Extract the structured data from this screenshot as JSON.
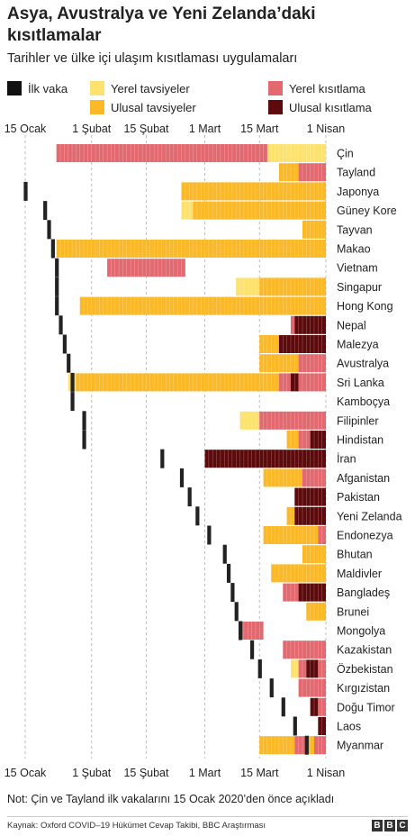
{
  "title": "Asya, Avustralya ve Yeni Zelanda’daki kısıtlamalar",
  "subtitle": "Tarihler ve ülke içi ulaşım kısıtlaması uygulamaları",
  "legend": [
    {
      "label": "İlk vaka",
      "color": "#111111"
    },
    {
      "label": "Yerel tavsiyeler",
      "color": "#fde270"
    },
    {
      "label": "Yerel kısıtlama",
      "color": "#e1696f"
    },
    {
      "label": "Ulusal tavsiyeler",
      "color": "#fbb827"
    },
    {
      "label": "Ulusal kısıtlama",
      "color": "#5c0a0b"
    }
  ],
  "note": "Not: Çin ve Tayland ilk vakalarını 15 Ocak 2020’den önce açıkladı",
  "source": "Kaynak: Oxford COVID–19 Hükümet Cevap Takibi, BBC Araştırması",
  "logo": [
    "B",
    "B",
    "C"
  ],
  "chart_data": {
    "type": "timeline",
    "x_axis": {
      "start": "2020-01-15",
      "end": "2020-04-01",
      "ticks": [
        {
          "date": "2020-01-15",
          "label": "15 Ocak"
        },
        {
          "date": "2020-02-01",
          "label": "1 Şubat"
        },
        {
          "date": "2020-02-15",
          "label": "15 Şubat"
        },
        {
          "date": "2020-03-01",
          "label": "1 Mart"
        },
        {
          "date": "2020-03-15",
          "label": "15 Mart"
        },
        {
          "date": "2020-04-01",
          "label": "1 Nisan"
        }
      ],
      "position": "top and bottom",
      "grid": "dashed vertical"
    },
    "categories": {
      "yerel_tavsiye": {
        "label": "Yerel tavsiyeler",
        "color": "#fde270"
      },
      "ulusal_tavsiye": {
        "label": "Ulusal tavsiyeler",
        "color": "#fbb827"
      },
      "yerel_kisitlama": {
        "label": "Yerel kısıtlama",
        "color": "#e1696f"
      },
      "ulusal_kisitlama": {
        "label": "Ulusal kısıtlama",
        "color": "#5c0a0b"
      }
    },
    "countries": [
      {
        "name": "Çin",
        "first_case": null,
        "segments": [
          [
            "2020-01-23",
            "2020-03-17",
            "yerel_kisitlama"
          ],
          [
            "2020-03-17",
            "2020-04-01",
            "yerel_tavsiye"
          ]
        ]
      },
      {
        "name": "Tayland",
        "first_case": null,
        "segments": [
          [
            "2020-03-20",
            "2020-03-25",
            "ulusal_tavsiye"
          ],
          [
            "2020-03-25",
            "2020-04-01",
            "yerel_kisitlama"
          ]
        ]
      },
      {
        "name": "Japonya",
        "first_case": "2020-01-15",
        "segments": [
          [
            "2020-02-24",
            "2020-04-01",
            "ulusal_tavsiye"
          ]
        ]
      },
      {
        "name": "Güney Kore",
        "first_case": "2020-01-20",
        "segments": [
          [
            "2020-02-24",
            "2020-02-27",
            "yerel_tavsiye"
          ],
          [
            "2020-02-27",
            "2020-04-01",
            "ulusal_tavsiye"
          ]
        ]
      },
      {
        "name": "Tayvan",
        "first_case": "2020-01-21",
        "segments": [
          [
            "2020-03-26",
            "2020-04-01",
            "ulusal_tavsiye"
          ]
        ]
      },
      {
        "name": "Makao",
        "first_case": "2020-01-22",
        "segments": [
          [
            "2020-01-23",
            "2020-04-01",
            "ulusal_tavsiye"
          ]
        ]
      },
      {
        "name": "Vietnam",
        "first_case": "2020-01-23",
        "segments": [
          [
            "2020-02-05",
            "2020-02-25",
            "yerel_kisitlama"
          ]
        ]
      },
      {
        "name": "Singapur",
        "first_case": "2020-01-23",
        "segments": [
          [
            "2020-03-09",
            "2020-03-15",
            "yerel_tavsiye"
          ],
          [
            "2020-03-15",
            "2020-04-01",
            "ulusal_tavsiye"
          ]
        ]
      },
      {
        "name": "Hong Kong",
        "first_case": "2020-01-23",
        "segments": [
          [
            "2020-01-29",
            "2020-04-01",
            "ulusal_tavsiye"
          ]
        ]
      },
      {
        "name": "Nepal",
        "first_case": "2020-01-24",
        "segments": [
          [
            "2020-03-23",
            "2020-03-24",
            "yerel_kisitlama"
          ],
          [
            "2020-03-24",
            "2020-04-01",
            "ulusal_kisitlama"
          ]
        ]
      },
      {
        "name": "Malezya",
        "first_case": "2020-01-25",
        "segments": [
          [
            "2020-03-15",
            "2020-03-20",
            "ulusal_tavsiye"
          ],
          [
            "2020-03-20",
            "2020-04-01",
            "ulusal_kisitlama"
          ]
        ]
      },
      {
        "name": "Avustralya",
        "first_case": "2020-01-26",
        "segments": [
          [
            "2020-03-15",
            "2020-03-25",
            "ulusal_tavsiye"
          ],
          [
            "2020-03-25",
            "2020-04-01",
            "yerel_kisitlama"
          ]
        ]
      },
      {
        "name": "Sri Lanka",
        "first_case": "2020-01-27",
        "segments": [
          [
            "2020-01-26",
            "2020-01-28",
            "yerel_tavsiye"
          ],
          [
            "2020-01-28",
            "2020-03-20",
            "ulusal_tavsiye"
          ],
          [
            "2020-03-20",
            "2020-03-23",
            "yerel_kisitlama"
          ],
          [
            "2020-03-23",
            "2020-03-25",
            "ulusal_kisitlama"
          ],
          [
            "2020-03-25",
            "2020-04-01",
            "yerel_kisitlama"
          ]
        ]
      },
      {
        "name": "Kamboçya",
        "first_case": "2020-01-27",
        "segments": []
      },
      {
        "name": "Filipinler",
        "first_case": "2020-01-30",
        "segments": [
          [
            "2020-03-10",
            "2020-03-15",
            "yerel_tavsiye"
          ],
          [
            "2020-03-15",
            "2020-04-01",
            "yerel_kisitlama"
          ]
        ]
      },
      {
        "name": "Hindistan",
        "first_case": "2020-01-30",
        "segments": [
          [
            "2020-03-22",
            "2020-03-25",
            "ulusal_tavsiye"
          ],
          [
            "2020-03-25",
            "2020-03-28",
            "yerel_kisitlama"
          ],
          [
            "2020-03-28",
            "2020-04-01",
            "ulusal_kisitlama"
          ]
        ]
      },
      {
        "name": "İran",
        "first_case": "2020-02-19",
        "segments": [
          [
            "2020-03-01",
            "2020-04-01",
            "ulusal_kisitlama"
          ]
        ]
      },
      {
        "name": "Afganistan",
        "first_case": "2020-02-24",
        "segments": [
          [
            "2020-03-16",
            "2020-03-26",
            "ulusal_tavsiye"
          ],
          [
            "2020-03-26",
            "2020-04-01",
            "yerel_kisitlama"
          ]
        ]
      },
      {
        "name": "Pakistan",
        "first_case": "2020-02-26",
        "segments": [
          [
            "2020-03-24",
            "2020-04-01",
            "ulusal_kisitlama"
          ]
        ]
      },
      {
        "name": "Yeni Zelanda",
        "first_case": "2020-02-28",
        "segments": [
          [
            "2020-03-22",
            "2020-03-24",
            "ulusal_tavsiye"
          ],
          [
            "2020-03-24",
            "2020-04-01",
            "ulusal_kisitlama"
          ]
        ]
      },
      {
        "name": "Endonezya",
        "first_case": "2020-03-02",
        "segments": [
          [
            "2020-03-16",
            "2020-03-30",
            "ulusal_tavsiye"
          ],
          [
            "2020-03-30",
            "2020-04-01",
            "yerel_kisitlama"
          ]
        ]
      },
      {
        "name": "Bhutan",
        "first_case": "2020-03-06",
        "segments": [
          [
            "2020-03-26",
            "2020-04-01",
            "ulusal_tavsiye"
          ]
        ]
      },
      {
        "name": "Maldivler",
        "first_case": "2020-03-07",
        "segments": [
          [
            "2020-03-18",
            "2020-04-01",
            "ulusal_tavsiye"
          ]
        ]
      },
      {
        "name": "Bangladeş",
        "first_case": "2020-03-08",
        "segments": [
          [
            "2020-03-21",
            "2020-03-25",
            "yerel_kisitlama"
          ],
          [
            "2020-03-25",
            "2020-04-01",
            "ulusal_kisitlama"
          ]
        ]
      },
      {
        "name": "Brunei",
        "first_case": "2020-03-09",
        "segments": [
          [
            "2020-03-27",
            "2020-04-01",
            "ulusal_tavsiye"
          ]
        ]
      },
      {
        "name": "Mongolya",
        "first_case": "2020-03-10",
        "segments": [
          [
            "2020-03-10",
            "2020-03-16",
            "yerel_kisitlama"
          ]
        ]
      },
      {
        "name": "Kazakistan",
        "first_case": "2020-03-13",
        "segments": [
          [
            "2020-03-21",
            "2020-04-01",
            "yerel_kisitlama"
          ]
        ]
      },
      {
        "name": "Özbekistan",
        "first_case": "2020-03-15",
        "segments": [
          [
            "2020-03-23",
            "2020-03-25",
            "yerel_tavsiye"
          ],
          [
            "2020-03-25",
            "2020-03-27",
            "yerel_kisitlama"
          ],
          [
            "2020-03-27",
            "2020-03-30",
            "ulusal_kisitlama"
          ],
          [
            "2020-03-30",
            "2020-04-01",
            "yerel_kisitlama"
          ]
        ]
      },
      {
        "name": "Kırgızistan",
        "first_case": "2020-03-18",
        "segments": [
          [
            "2020-03-25",
            "2020-04-01",
            "yerel_kisitlama"
          ]
        ]
      },
      {
        "name": "Doğu Timor",
        "first_case": "2020-03-21",
        "segments": [
          [
            "2020-03-28",
            "2020-03-30",
            "ulusal_kisitlama"
          ],
          [
            "2020-03-30",
            "2020-04-01",
            "yerel_kisitlama"
          ]
        ]
      },
      {
        "name": "Laos",
        "first_case": "2020-03-24",
        "segments": [
          [
            "2020-03-30",
            "2020-04-01",
            "ulusal_kisitlama"
          ]
        ]
      },
      {
        "name": "Myanmar",
        "first_case": "2020-03-27",
        "segments": [
          [
            "2020-03-15",
            "2020-03-24",
            "ulusal_tavsiye"
          ],
          [
            "2020-03-24",
            "2020-03-27",
            "yerel_kisitlama"
          ],
          [
            "2020-03-27",
            "2020-03-29",
            "ulusal_tavsiye"
          ],
          [
            "2020-03-29",
            "2020-04-01",
            "yerel_kisitlama"
          ]
        ]
      }
    ]
  }
}
